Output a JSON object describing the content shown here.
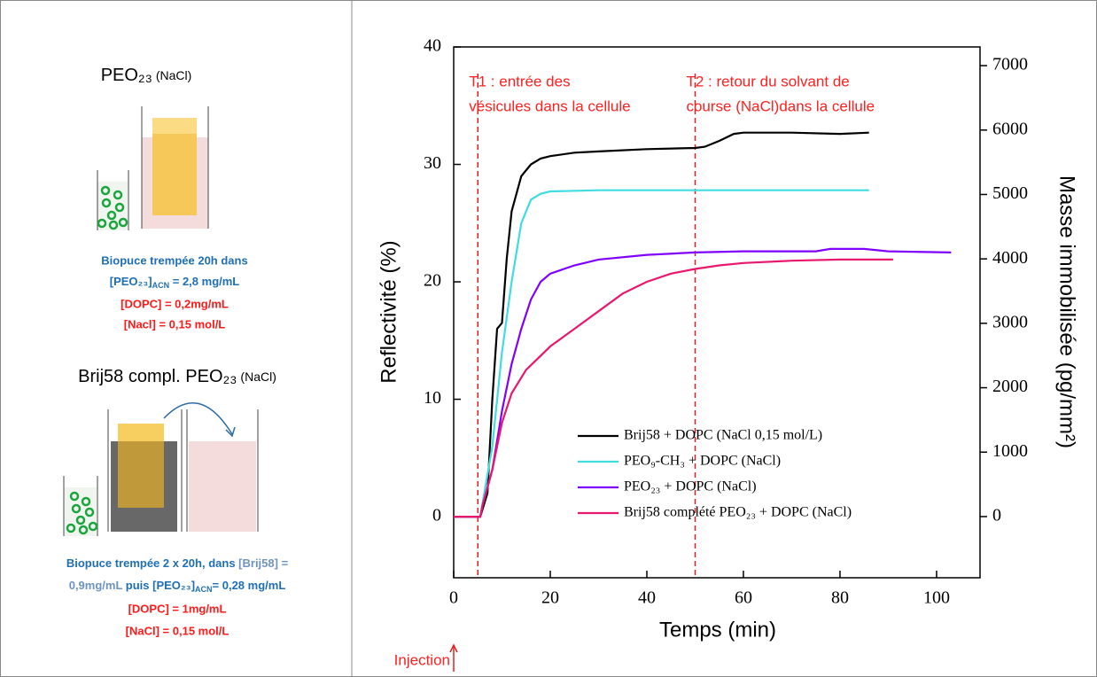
{
  "chart_data": {
    "type": "line",
    "x_label": "Temps (min)",
    "y_label": "Reflectivité (%)",
    "y2_label": "Masse immobilisée (pg/mm²)",
    "xlim": [
      0,
      109
    ],
    "xticks": [
      0,
      20,
      40,
      60,
      80,
      100
    ],
    "ylim": [
      -5.2,
      40
    ],
    "yticks": [
      0,
      10,
      20,
      30,
      40
    ],
    "y2lim": [
      -950,
      7290
    ],
    "y2ticks": [
      0,
      1000,
      2000,
      3000,
      4000,
      5000,
      6000,
      7000
    ],
    "legend": "lower right",
    "annotations": [
      {
        "x": 5,
        "text": [
          "T1 : entrée des",
          "vésicules dans la cellule"
        ]
      },
      {
        "x": 50,
        "text": [
          "T2 : retour du solvant de",
          "course (NaCl)dans la cellule"
        ]
      },
      {
        "x": 0,
        "text": "Injection"
      }
    ],
    "series": [
      {
        "name": "Brij58 + DOPC (NaCl 0,15 mol/L)",
        "color": "#000000",
        "x": [
          0,
          5.5,
          7,
          8,
          9,
          10,
          11,
          12,
          14,
          16,
          18,
          20,
          25,
          30,
          40,
          50,
          52,
          55,
          58,
          60,
          70,
          80,
          86
        ],
        "values": [
          0,
          0,
          2,
          10,
          16,
          16.5,
          22,
          26,
          29,
          30,
          30.5,
          30.7,
          31,
          31.1,
          31.3,
          31.4,
          31.5,
          32,
          32.6,
          32.7,
          32.7,
          32.6,
          32.7
        ]
      },
      {
        "name": "PEO₉-CH₃ + DOPC (NaCl)",
        "color": "#40dce0",
        "x": [
          0,
          5.5,
          8,
          10,
          12,
          14,
          16,
          18,
          20,
          30,
          50,
          60,
          86
        ],
        "values": [
          0,
          0,
          6,
          14,
          20,
          25,
          27,
          27.5,
          27.7,
          27.8,
          27.8,
          27.8,
          27.8
        ]
      },
      {
        "name": "PEO₂₃ + DOPC (NaCl)",
        "color": "#8000ff",
        "x": [
          0,
          5.5,
          6,
          8,
          10,
          12,
          14,
          16,
          18,
          20,
          25,
          30,
          40,
          50,
          60,
          75,
          78,
          85,
          90,
          103
        ],
        "values": [
          0,
          0,
          1,
          4,
          9,
          13,
          16,
          18.5,
          20,
          20.7,
          21.4,
          21.9,
          22.3,
          22.5,
          22.6,
          22.6,
          22.8,
          22.8,
          22.6,
          22.5
        ]
      },
      {
        "name": "Brij58 complété PEO₂₃ + DOPC (NaCl)",
        "color": "#e8186e",
        "x": [
          0,
          5.5,
          6,
          8,
          10,
          12,
          15,
          20,
          25,
          30,
          35,
          40,
          45,
          50,
          55,
          60,
          70,
          80,
          91
        ],
        "values": [
          0,
          0,
          1,
          4,
          8,
          10.5,
          12.5,
          14.5,
          16,
          17.5,
          19,
          20,
          20.7,
          21.1,
          21.4,
          21.6,
          21.8,
          21.9,
          21.9
        ]
      }
    ]
  },
  "left_panel": {
    "panel1": {
      "title": "PEO₂₃",
      "title_suffix": "(NaCl)",
      "lines": [
        [
          "Biopuce trempée 20h dans"
        ],
        [
          "[PEO₂₃]",
          "ACN",
          " = 2,8 mg/mL"
        ],
        [
          "[DOPC] = 0,2mg/mL"
        ],
        [
          "[Nacl] = 0,15 mol/L"
        ]
      ]
    },
    "panel2": {
      "title": "Brij58 compl. PEO₂₃",
      "title_suffix": "(NaCl)",
      "lines": [
        [
          "Biopuce trempée 2 x 20h, dans ",
          "[Brij58] ="
        ],
        [
          "0,9mg/mL",
          " puis  ",
          "[PEO₂₃]",
          "ACN",
          "= 0,28 mg/mL"
        ],
        [
          "[DOPC] = 1mg/mL"
        ],
        [
          "[NaCl] = 0,15 mol/L"
        ]
      ]
    }
  }
}
